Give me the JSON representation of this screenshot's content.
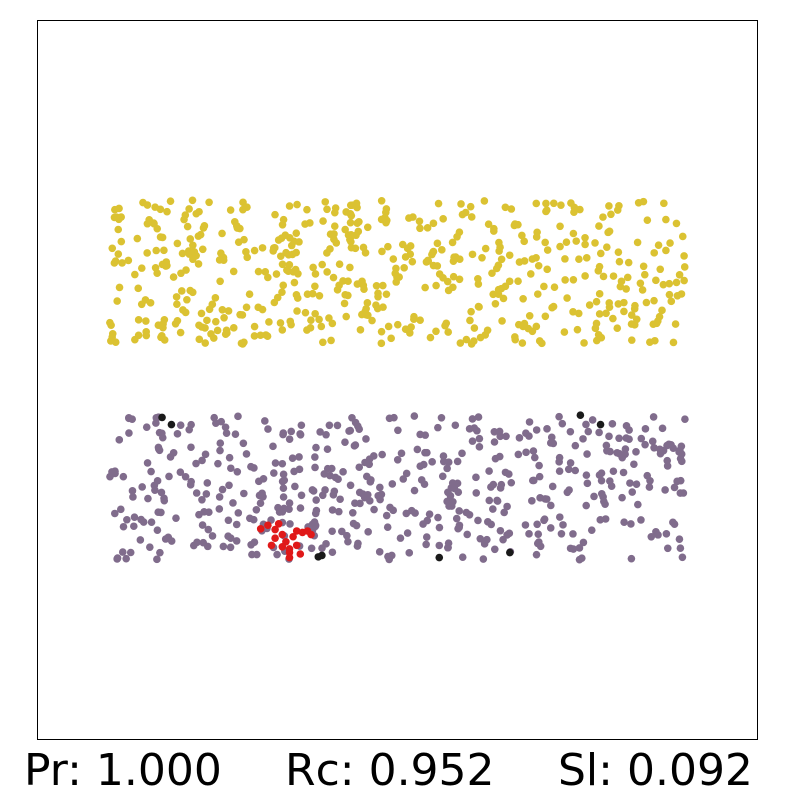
{
  "metrics": {
    "precision": "Pr: 1.000",
    "recall": "Rc: 0.952",
    "silhouette": "Sl: 0.092"
  },
  "chart_data": {
    "type": "scatter",
    "title": "",
    "xlabel": "",
    "ylabel": "",
    "grid": false,
    "legend": "none",
    "xlim": [
      0,
      1
    ],
    "ylim": [
      0,
      1
    ],
    "colors": {
      "yellow": "#dbc232",
      "purple": "#806c8c",
      "red": "#e01919",
      "black": "#1a1a1a"
    },
    "clusters": [
      {
        "name": "",
        "color": "#dbc232",
        "count": 560,
        "x_range": [
          0.1,
          0.9
        ],
        "y_range": [
          0.55,
          0.75
        ],
        "seed": 11
      },
      {
        "name": "",
        "color": "#806c8c",
        "count": 520,
        "x_range": [
          0.1,
          0.9
        ],
        "y_range": [
          0.25,
          0.45
        ],
        "seed": 29
      }
    ],
    "points": [
      {
        "x": 0.31,
        "y": 0.293,
        "color": "#e01919"
      },
      {
        "x": 0.32,
        "y": 0.298,
        "color": "#e01919"
      },
      {
        "x": 0.33,
        "y": 0.292,
        "color": "#e01919"
      },
      {
        "x": 0.335,
        "y": 0.3,
        "color": "#e01919"
      },
      {
        "x": 0.325,
        "y": 0.27,
        "color": "#e01919"
      },
      {
        "x": 0.34,
        "y": 0.285,
        "color": "#e01919"
      },
      {
        "x": 0.345,
        "y": 0.275,
        "color": "#e01919"
      },
      {
        "x": 0.35,
        "y": 0.265,
        "color": "#e01919"
      },
      {
        "x": 0.355,
        "y": 0.282,
        "color": "#e01919"
      },
      {
        "x": 0.36,
        "y": 0.27,
        "color": "#e01919"
      },
      {
        "x": 0.36,
        "y": 0.29,
        "color": "#e01919"
      },
      {
        "x": 0.368,
        "y": 0.288,
        "color": "#e01919"
      },
      {
        "x": 0.375,
        "y": 0.29,
        "color": "#e01919"
      },
      {
        "x": 0.38,
        "y": 0.285,
        "color": "#e01919"
      },
      {
        "x": 0.35,
        "y": 0.26,
        "color": "#e01919"
      },
      {
        "x": 0.365,
        "y": 0.258,
        "color": "#e01919"
      },
      {
        "x": 0.34,
        "y": 0.268,
        "color": "#e01919"
      },
      {
        "x": 0.33,
        "y": 0.28,
        "color": "#e01919"
      },
      {
        "x": 0.35,
        "y": 0.253,
        "color": "#e01919"
      },
      {
        "x": 0.173,
        "y": 0.448,
        "color": "#1a1a1a"
      },
      {
        "x": 0.186,
        "y": 0.438,
        "color": "#1a1a1a"
      },
      {
        "x": 0.39,
        "y": 0.254,
        "color": "#1a1a1a"
      },
      {
        "x": 0.395,
        "y": 0.256,
        "color": "#1a1a1a"
      },
      {
        "x": 0.558,
        "y": 0.253,
        "color": "#1a1a1a"
      },
      {
        "x": 0.656,
        "y": 0.26,
        "color": "#1a1a1a"
      },
      {
        "x": 0.754,
        "y": 0.451,
        "color": "#1a1a1a"
      },
      {
        "x": 0.782,
        "y": 0.438,
        "color": "#1a1a1a"
      }
    ]
  }
}
